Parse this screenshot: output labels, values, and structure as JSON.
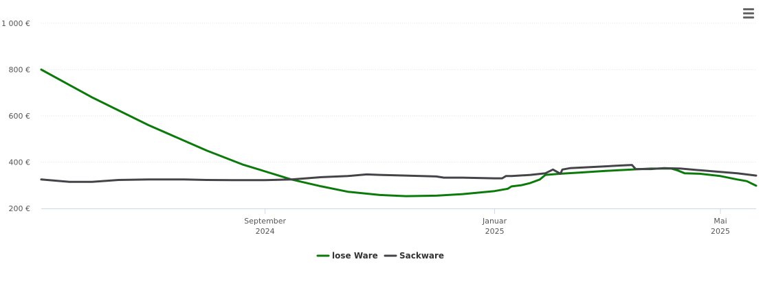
{
  "menu": {
    "icon": "hamburger-menu-icon"
  },
  "chart_data": {
    "type": "line",
    "y_ticks": [
      "1 000 €",
      "800 €",
      "600 €",
      "400 €",
      "200 €"
    ],
    "y_tick_values": [
      1000,
      800,
      600,
      400,
      200
    ],
    "ylim": [
      200,
      1000
    ],
    "xlim": [
      "2024-05-05",
      "2025-05-20"
    ],
    "x_ticks": [
      {
        "date": "2024-09-01",
        "label1": "September",
        "label2": "2024"
      },
      {
        "date": "2025-01-01",
        "label1": "Januar",
        "label2": "2025"
      },
      {
        "date": "2025-05-01",
        "label1": "Mai",
        "label2": "2025"
      }
    ],
    "grid": true,
    "legend_position": "bottom-center",
    "series": [
      {
        "name": "lose Ware",
        "color": "#0b7a0b",
        "points": [
          [
            "2024-05-05",
            800
          ],
          [
            "2024-06-01",
            680
          ],
          [
            "2024-07-01",
            560
          ],
          [
            "2024-08-01",
            450
          ],
          [
            "2024-08-20",
            390
          ],
          [
            "2024-09-01",
            360
          ],
          [
            "2024-09-15",
            325
          ],
          [
            "2024-10-01",
            295
          ],
          [
            "2024-10-15",
            272
          ],
          [
            "2024-11-01",
            258
          ],
          [
            "2024-11-15",
            253
          ],
          [
            "2024-12-01",
            255
          ],
          [
            "2024-12-15",
            262
          ],
          [
            "2025-01-01",
            275
          ],
          [
            "2025-01-08",
            285
          ],
          [
            "2025-01-10",
            295
          ],
          [
            "2025-01-15",
            300
          ],
          [
            "2025-01-20",
            310
          ],
          [
            "2025-01-25",
            325
          ],
          [
            "2025-01-28",
            345
          ],
          [
            "2025-02-05",
            350
          ],
          [
            "2025-02-15",
            355
          ],
          [
            "2025-03-01",
            362
          ],
          [
            "2025-03-15",
            368
          ],
          [
            "2025-03-25",
            372
          ],
          [
            "2025-04-05",
            372
          ],
          [
            "2025-04-08",
            365
          ],
          [
            "2025-04-12",
            352
          ],
          [
            "2025-04-20",
            350
          ],
          [
            "2025-05-01",
            340
          ],
          [
            "2025-05-10",
            325
          ],
          [
            "2025-05-15",
            318
          ],
          [
            "2025-05-20",
            298
          ]
        ]
      },
      {
        "name": "Sackware",
        "color": "#434348",
        "points": [
          [
            "2024-05-05",
            325
          ],
          [
            "2024-05-20",
            315
          ],
          [
            "2024-06-01",
            315
          ],
          [
            "2024-06-15",
            323
          ],
          [
            "2024-07-01",
            325
          ],
          [
            "2024-07-20",
            325
          ],
          [
            "2024-08-01",
            323
          ],
          [
            "2024-08-15",
            322
          ],
          [
            "2024-09-01",
            322
          ],
          [
            "2024-09-15",
            325
          ],
          [
            "2024-10-01",
            335
          ],
          [
            "2024-10-15",
            340
          ],
          [
            "2024-10-25",
            347
          ],
          [
            "2024-11-01",
            345
          ],
          [
            "2024-11-15",
            342
          ],
          [
            "2024-12-01",
            338
          ],
          [
            "2024-12-05",
            333
          ],
          [
            "2024-12-15",
            333
          ],
          [
            "2025-01-01",
            330
          ],
          [
            "2025-01-05",
            330
          ],
          [
            "2025-01-07",
            340
          ],
          [
            "2025-01-10",
            340
          ],
          [
            "2025-01-20",
            345
          ],
          [
            "2025-01-28",
            352
          ],
          [
            "2025-02-01",
            368
          ],
          [
            "2025-02-05",
            350
          ],
          [
            "2025-02-06",
            368
          ],
          [
            "2025-02-10",
            374
          ],
          [
            "2025-02-20",
            378
          ],
          [
            "2025-03-01",
            382
          ],
          [
            "2025-03-10",
            386
          ],
          [
            "2025-03-15",
            388
          ],
          [
            "2025-03-17",
            370
          ],
          [
            "2025-03-25",
            370
          ],
          [
            "2025-04-01",
            374
          ],
          [
            "2025-04-10",
            372
          ],
          [
            "2025-04-20",
            365
          ],
          [
            "2025-05-01",
            358
          ],
          [
            "2025-05-10",
            352
          ],
          [
            "2025-05-20",
            342
          ]
        ]
      }
    ]
  }
}
